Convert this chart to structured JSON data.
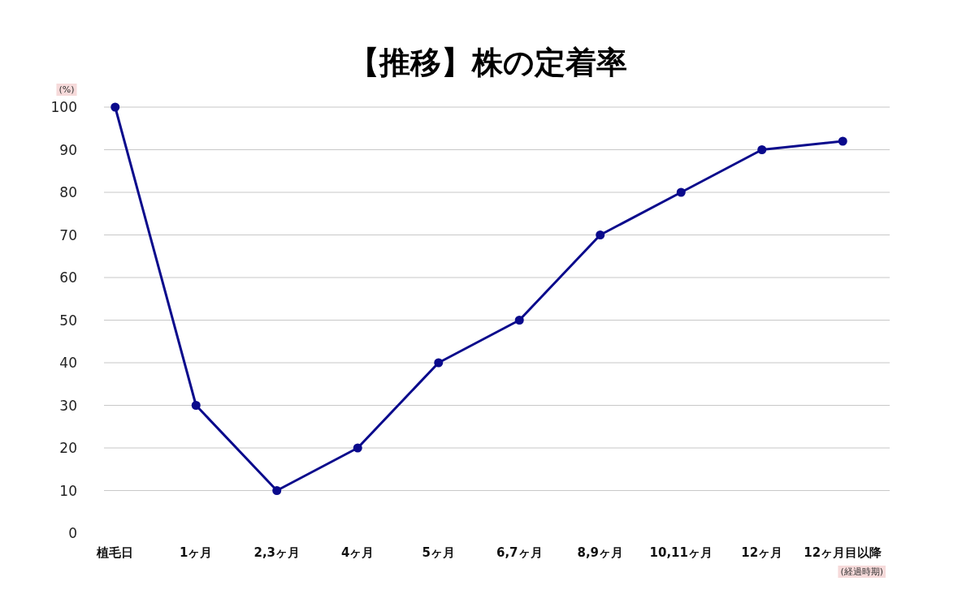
{
  "chart_data": {
    "type": "line",
    "title": "【推移】株の定着率",
    "ylabel": "(%)",
    "xlabel": "(経過時期)",
    "categories": [
      "植毛日",
      "1ヶ月",
      "2,3ヶ月",
      "4ヶ月",
      "5ヶ月",
      "6,7ヶ月",
      "8,9ヶ月",
      "10,11ヶ月",
      "12ヶ月",
      "12ヶ月目以降"
    ],
    "series": [
      {
        "color": "#0a0a8c",
        "values": [
          100,
          30,
          10,
          20,
          40,
          50,
          70,
          80,
          90,
          92
        ]
      }
    ],
    "ylim": [
      0,
      100
    ],
    "yticks": [
      0,
      10,
      20,
      30,
      40,
      50,
      60,
      70,
      80,
      90,
      100
    ],
    "grid": "y",
    "marker": "circle",
    "line_style": "solid"
  }
}
